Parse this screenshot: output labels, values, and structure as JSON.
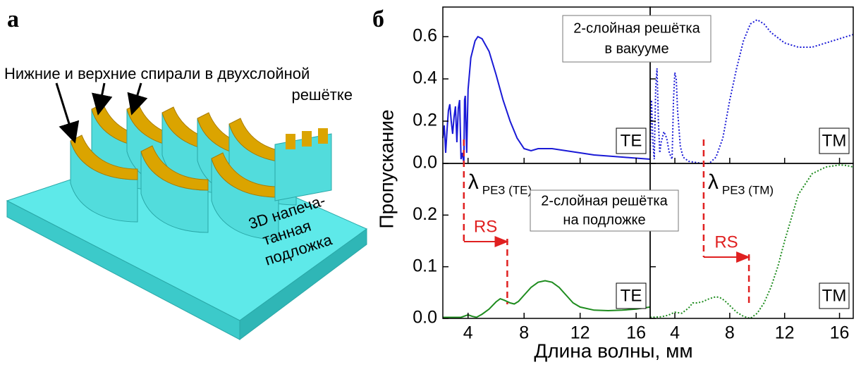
{
  "panel_a": {
    "label": "а",
    "callout": [
      "Нижние и верхние спирали в двухслойной",
      "решётке"
    ],
    "substrate_label": [
      "3D напеча-",
      "танная",
      "подложка"
    ]
  },
  "panel_b": {
    "label": "б",
    "xlabel": "Длина волны, мм",
    "ylabel": "Пропускание",
    "note_top": [
      "2-слойная решётка",
      "в вакууме"
    ],
    "note_bottom": [
      "2-слойная решётка",
      "на  подложке"
    ]
  },
  "chart_data": [
    {
      "type": "line",
      "xlim": [
        2.2,
        17
      ],
      "xticks": [
        4,
        8,
        12,
        16
      ],
      "xtick_labels": false,
      "ylim": [
        0,
        0.74
      ],
      "yticks": [
        {
          "value": 0,
          "label": "0.0"
        },
        0.2,
        0.4,
        0.6
      ],
      "ytick_labels": true,
      "mode": "TE",
      "series": [
        {
          "color": "#1a1ad6",
          "dash": "solid",
          "x": [
            2.2,
            2.3,
            2.4,
            2.5,
            2.6,
            2.7,
            2.8,
            2.9,
            3.0,
            3.1,
            3.2,
            3.3,
            3.4,
            3.5,
            3.6,
            3.7,
            3.75,
            3.8,
            3.9,
            4.0,
            4.2,
            4.5,
            4.7,
            5.0,
            5.5,
            6.0,
            6.5,
            7.0,
            7.5,
            8.0,
            8.5,
            9.0,
            9.5,
            10,
            11,
            12,
            13,
            14,
            15,
            16,
            17
          ],
          "values": [
            0.12,
            0.18,
            0.05,
            0.16,
            0.25,
            0.28,
            0.2,
            0.14,
            0.22,
            0.27,
            0.1,
            0.26,
            0.3,
            0.02,
            0.05,
            0.0,
            0.3,
            0.32,
            0.05,
            0.35,
            0.5,
            0.58,
            0.6,
            0.59,
            0.53,
            0.42,
            0.3,
            0.2,
            0.12,
            0.07,
            0.06,
            0.07,
            0.07,
            0.07,
            0.06,
            0.05,
            0.04,
            0.035,
            0.03,
            0.025,
            0.02
          ]
        }
      ]
    },
    {
      "type": "line",
      "xlim": [
        2.2,
        17
      ],
      "xticks": [
        4,
        8,
        12,
        16
      ],
      "xtick_labels": false,
      "ylim": [
        0,
        0.74
      ],
      "yticks": [
        {
          "value": 0,
          "label": "0.0"
        },
        0.2,
        0.4,
        0.6
      ],
      "ytick_labels": false,
      "mode": "TM",
      "series": [
        {
          "color": "#1a1ad6",
          "dash": "dotted",
          "x": [
            2.2,
            2.3,
            2.4,
            2.5,
            2.6,
            2.7,
            2.8,
            2.9,
            3.0,
            3.2,
            3.4,
            3.6,
            3.8,
            3.9,
            4.0,
            4.1,
            4.2,
            4.4,
            4.6,
            5.0,
            5.5,
            6.0,
            6.5,
            7.0,
            7.5,
            8.0,
            8.5,
            9.0,
            9.5,
            10.0,
            10.5,
            11,
            12,
            13,
            14,
            15,
            16,
            17
          ],
          "values": [
            0.05,
            0.3,
            0.1,
            0.02,
            0.35,
            0.45,
            0.2,
            0.05,
            0.1,
            0.15,
            0.12,
            0.05,
            0.02,
            0.3,
            0.43,
            0.4,
            0.25,
            0.08,
            0.03,
            0.01,
            0.005,
            0.0,
            0.0,
            0.03,
            0.12,
            0.3,
            0.45,
            0.58,
            0.66,
            0.68,
            0.66,
            0.62,
            0.57,
            0.55,
            0.55,
            0.57,
            0.59,
            0.61
          ]
        }
      ]
    },
    {
      "type": "line",
      "xlim": [
        2.2,
        17
      ],
      "xticks": [
        4,
        8,
        12,
        16
      ],
      "xtick_labels": true,
      "ylim": [
        0,
        0.3
      ],
      "yticks": [
        {
          "value": 0,
          "label": "0.0"
        },
        0.1,
        0.2
      ],
      "ytick_labels": true,
      "mode": "TE",
      "resonance": {
        "x": 3.7,
        "symbol": "λ",
        "subscript": "РЕЗ (TE)"
      },
      "shift": {
        "label": "RS",
        "x_from": 3.7,
        "x_to": 6.8
      },
      "series": [
        {
          "color": "#1e8c1e",
          "dash": "solid",
          "x": [
            2.2,
            3.0,
            3.5,
            3.8,
            4.0,
            4.3,
            4.6,
            5.0,
            5.5,
            6.0,
            6.3,
            6.6,
            7.0,
            7.3,
            7.6,
            8.0,
            8.5,
            9.0,
            9.5,
            10.0,
            10.5,
            11,
            11.5,
            12,
            13,
            14,
            15,
            16,
            17
          ],
          "values": [
            0.002,
            0.002,
            0.002,
            0.005,
            0.007,
            0.004,
            0.002,
            0.008,
            0.018,
            0.032,
            0.038,
            0.035,
            0.03,
            0.028,
            0.033,
            0.045,
            0.06,
            0.07,
            0.073,
            0.07,
            0.06,
            0.045,
            0.03,
            0.022,
            0.016,
            0.015,
            0.016,
            0.018,
            0.022
          ]
        }
      ]
    },
    {
      "type": "line",
      "xlim": [
        2.2,
        17
      ],
      "xticks": [
        4,
        8,
        12,
        16
      ],
      "xtick_labels": true,
      "ylim": [
        0,
        0.3
      ],
      "yticks": [
        {
          "value": 0,
          "label": "0.0"
        },
        0.1,
        0.2
      ],
      "ytick_labels": false,
      "mode": "TM",
      "resonance": {
        "x": 6.1,
        "symbol": "λ",
        "subscript": "РЕЗ (TM)"
      },
      "shift": {
        "label": "RS",
        "x_from": 6.1,
        "x_to": 9.4
      },
      "series": [
        {
          "color": "#1e8c1e",
          "dash": "dotted",
          "x": [
            2.2,
            3.0,
            3.5,
            4.0,
            4.5,
            5.0,
            5.3,
            5.6,
            6.0,
            6.5,
            7.0,
            7.3,
            7.6,
            8.0,
            8.5,
            9.0,
            9.5,
            10.0,
            10.5,
            11,
            11.5,
            12,
            13,
            14,
            15,
            16,
            16.5,
            17
          ],
          "values": [
            0.002,
            0.003,
            0.006,
            0.012,
            0.01,
            0.02,
            0.03,
            0.03,
            0.032,
            0.038,
            0.042,
            0.04,
            0.035,
            0.025,
            0.012,
            0.004,
            0.0,
            0.01,
            0.03,
            0.06,
            0.1,
            0.15,
            0.24,
            0.28,
            0.293,
            0.297,
            0.296,
            0.293
          ]
        }
      ]
    }
  ]
}
